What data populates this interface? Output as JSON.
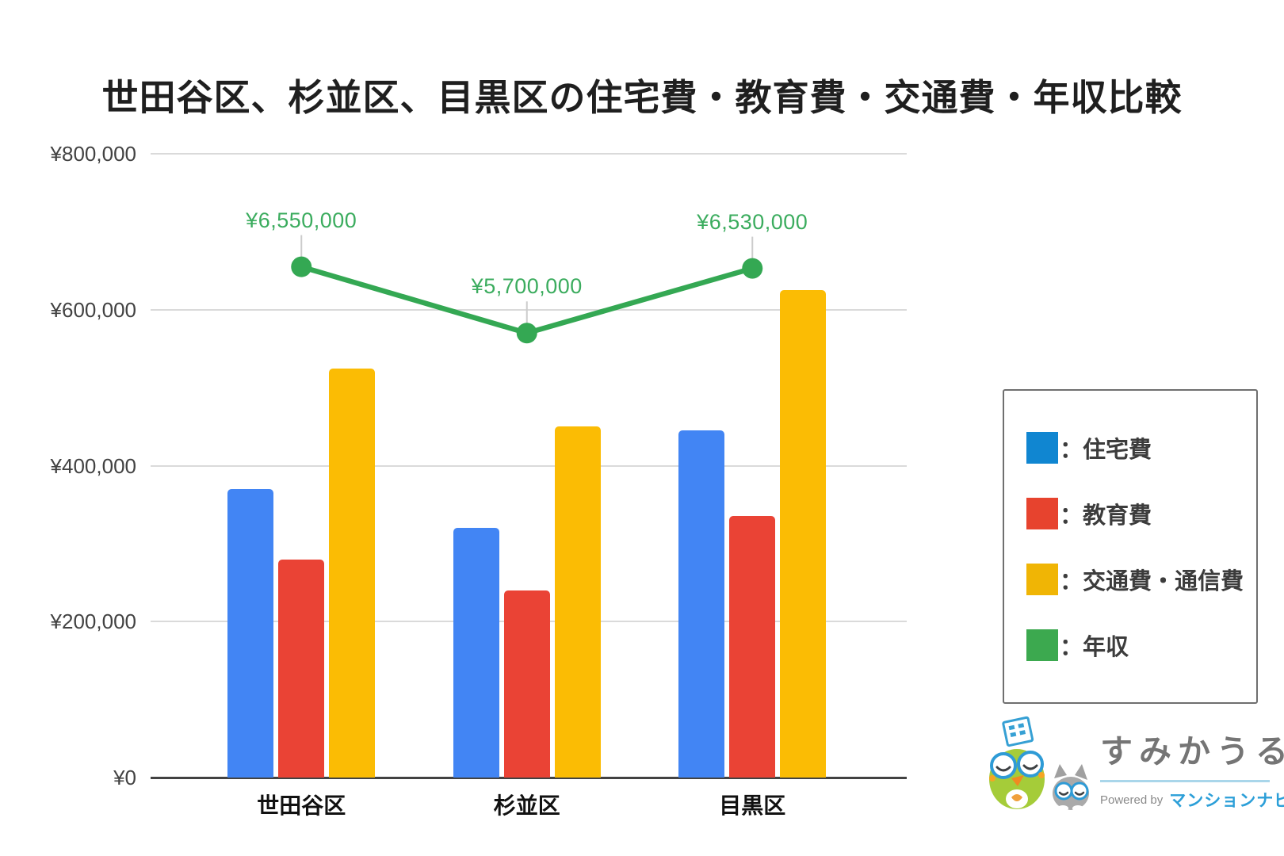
{
  "title": "世田谷区、杉並区、目黒区の住宅費・教育費・交通費・年収比較",
  "chart_data": {
    "type": "bar",
    "subtype": "grouped-bars-with-line-overlay",
    "title": "世田谷区、杉並区、目黒区の住宅費・教育費・交通費・年収比較",
    "categories": [
      {
        "key": "setagaya",
        "label": "世田谷区"
      },
      {
        "key": "suginami",
        "label": "杉並区"
      },
      {
        "key": "meguro",
        "label": "目黒区"
      }
    ],
    "bar_series": [
      {
        "key": "housing",
        "name": "住宅費",
        "color": "#4285F4",
        "values": [
          370000,
          320000,
          445000
        ]
      },
      {
        "key": "education",
        "name": "教育費",
        "color": "#EA4335",
        "values": [
          280000,
          240000,
          335000
        ]
      },
      {
        "key": "transport",
        "name": "交通費・通信費",
        "color": "#FBBC04",
        "values": [
          525000,
          450000,
          625000
        ]
      }
    ],
    "line_series": {
      "key": "income",
      "name": "年収",
      "color": "#34A853",
      "label_color": "#3BAC5E",
      "values": [
        6550000,
        5700000,
        6530000
      ],
      "point_labels": [
        "¥6,550,000",
        "¥5,700,000",
        "¥6,530,000"
      ],
      "plotted_on_primary_axis_divided_by": 10
    },
    "y_axis": {
      "min": 0,
      "max": 800000,
      "ticks": [
        {
          "value": 800000,
          "label": "¥800,000"
        },
        {
          "value": 600000,
          "label": "¥600,000"
        },
        {
          "value": 400000,
          "label": "¥400,000"
        },
        {
          "value": 200000,
          "label": "¥200,000"
        },
        {
          "value": 0,
          "label": "¥0"
        }
      ]
    },
    "grid": true,
    "legend_position": "right"
  },
  "legend": {
    "items": [
      {
        "key": "housing",
        "label": "：住宅費",
        "color": "#1086D1"
      },
      {
        "key": "education",
        "label": "：教育費",
        "color": "#E7432E"
      },
      {
        "key": "transport",
        "label": "：交通費・通信費",
        "color": "#F0B505"
      },
      {
        "key": "income",
        "label": "：年収",
        "color": "#3CA94F"
      }
    ]
  },
  "logo": {
    "brand": "すみかうる",
    "powered_by": "Powered by",
    "powered_brand": "マンションナビ"
  }
}
